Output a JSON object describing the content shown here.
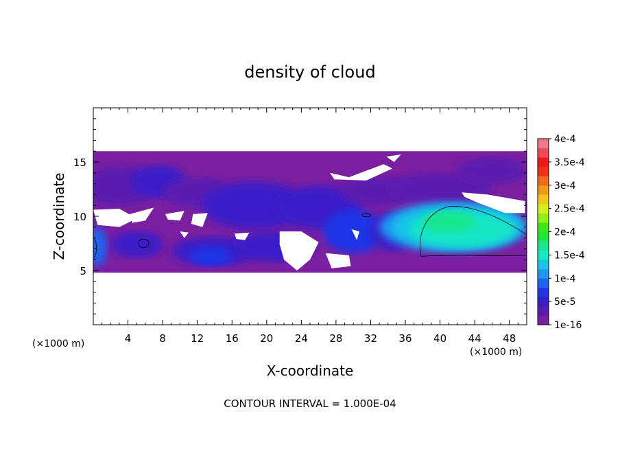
{
  "chart_data": {
    "type": "heatmap",
    "title": "density of cloud",
    "xlabel": "X-coordinate",
    "ylabel": "Z-coordinate",
    "x_unit": "(×1000 m)",
    "footer": "CONTOUR INTERVAL = 1.000E-04",
    "xlim": [
      0,
      50
    ],
    "ylim": [
      0,
      20
    ],
    "x_ticks": [
      "4",
      "8",
      "12",
      "16",
      "20",
      "24",
      "28",
      "32",
      "36",
      "40",
      "44",
      "48"
    ],
    "x_tick_values": [
      4,
      8,
      12,
      16,
      20,
      24,
      28,
      32,
      36,
      40,
      44,
      48
    ],
    "y_ticks": [
      "5",
      "10",
      "15"
    ],
    "y_tick_values": [
      5,
      10,
      15
    ],
    "colorbar": {
      "labels": [
        "1e-16",
        "5e-5",
        "1e-4",
        "1.5e-4",
        "2e-4",
        "2.5e-4",
        "3e-4",
        "3.5e-4",
        "4e-4"
      ],
      "label_values": [
        0,
        5e-05,
        0.0001,
        0.00015,
        0.0002,
        0.00025,
        0.0003,
        0.00035,
        0.0004
      ],
      "colors": [
        "#7a1fa0",
        "#5a1ab0",
        "#3a1fc8",
        "#1f36e6",
        "#1f63f0",
        "#1f96f0",
        "#19c6e6",
        "#19e6c4",
        "#19e68e",
        "#1ee63c",
        "#3fe619",
        "#90ee19",
        "#d6f019",
        "#f0c819",
        "#f09a19",
        "#f06a19",
        "#f03219",
        "#f01919",
        "#f04a5a",
        "#f07a8a"
      ]
    },
    "field": {
      "cloud_base_z": 4.8,
      "cloud_top_z": 16.0,
      "max_density": 0.000215,
      "max_location": {
        "x": 41,
        "z": 9.5
      }
    },
    "contour_levels": [
      0.0001
    ]
  }
}
